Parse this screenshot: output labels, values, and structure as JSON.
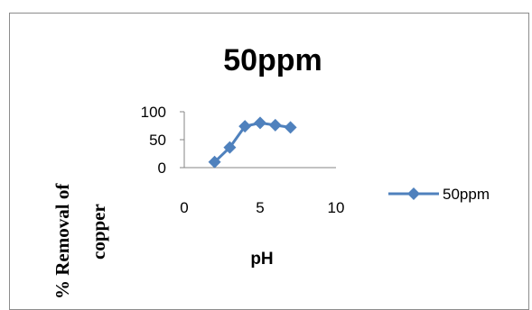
{
  "chart_data": {
    "type": "line",
    "title": "50ppm",
    "xlabel": "pH",
    "ylabel_line1": "% Removal of",
    "ylabel_line2": "copper",
    "xlim": [
      0,
      10
    ],
    "ylim": [
      0,
      100
    ],
    "xticks": [
      "0",
      "5",
      "10"
    ],
    "yticks": [
      "0",
      "50",
      "100"
    ],
    "legend_position": "right",
    "series": [
      {
        "name": "50ppm",
        "color": "#4f81bd",
        "marker": "diamond",
        "x": [
          2,
          3,
          4,
          5,
          6,
          7
        ],
        "y": [
          10,
          36,
          74,
          80,
          76,
          72
        ]
      }
    ]
  }
}
